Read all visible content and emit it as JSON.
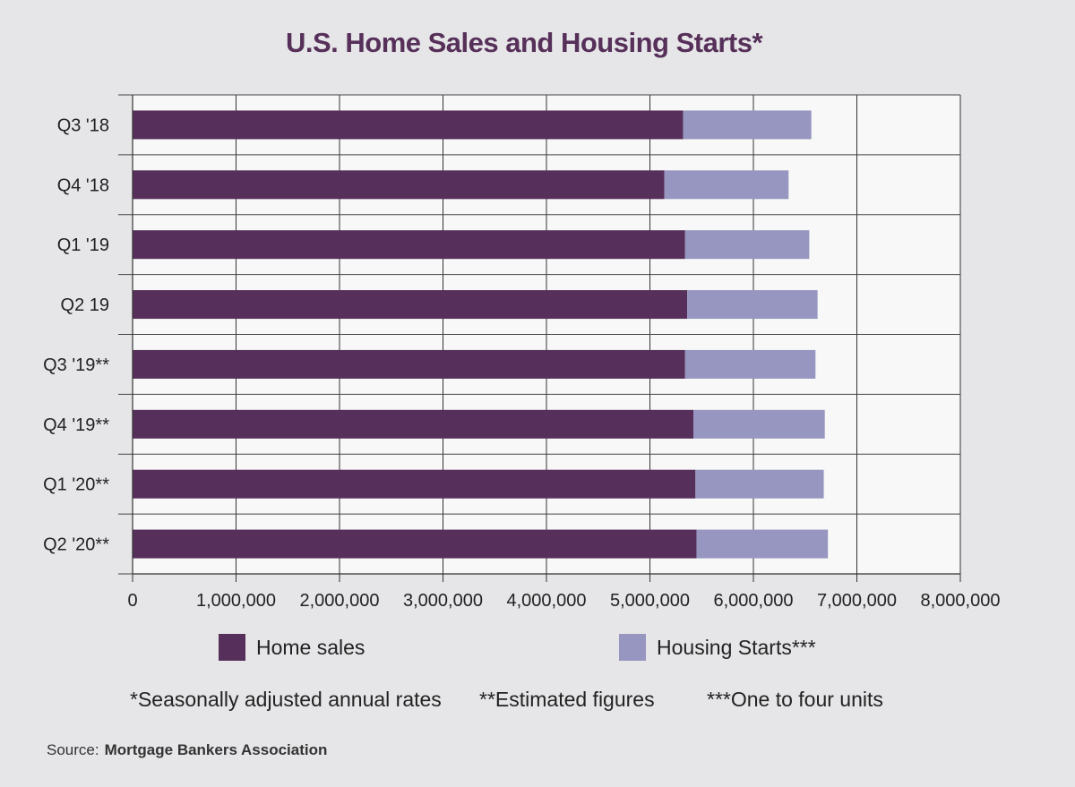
{
  "chart_data": {
    "type": "bar",
    "orientation": "horizontal",
    "stacked": true,
    "title": "U.S. Home Sales and Housing Starts*",
    "categories": [
      "Q3 '18",
      "Q4 '18",
      "Q1 '19",
      "Q2 19",
      "Q3 '19**",
      "Q4 '19**",
      "Q1 '20**",
      "Q2 '20**"
    ],
    "series": [
      {
        "name": "Home sales",
        "color": "#56305a",
        "values": [
          5320000,
          5140000,
          5340000,
          5360000,
          5340000,
          5420000,
          5440000,
          5450000
        ]
      },
      {
        "name": "Housing Starts***",
        "color": "#9696c0",
        "values": [
          1240000,
          1200000,
          1200000,
          1260000,
          1260000,
          1270000,
          1240000,
          1270000
        ]
      }
    ],
    "xlim": [
      0,
      8000000
    ],
    "xticks": [
      "0",
      "1,000,000",
      "2,000,000",
      "3,000,000",
      "4,000,000",
      "5,000,000",
      "6,000,000",
      "7,000,000",
      "8,000,000"
    ],
    "xtick_values": [
      0,
      1000000,
      2000000,
      3000000,
      4000000,
      5000000,
      6000000,
      7000000,
      8000000
    ],
    "grid": true,
    "legend": "bottom"
  },
  "footnotes": {
    "seasonal": "*Seasonally adjusted annual rates",
    "estimated": "**Estimated figures",
    "units": "***One to four units"
  },
  "source": {
    "label": "Source:",
    "name": "Mortgage Bankers Association"
  }
}
